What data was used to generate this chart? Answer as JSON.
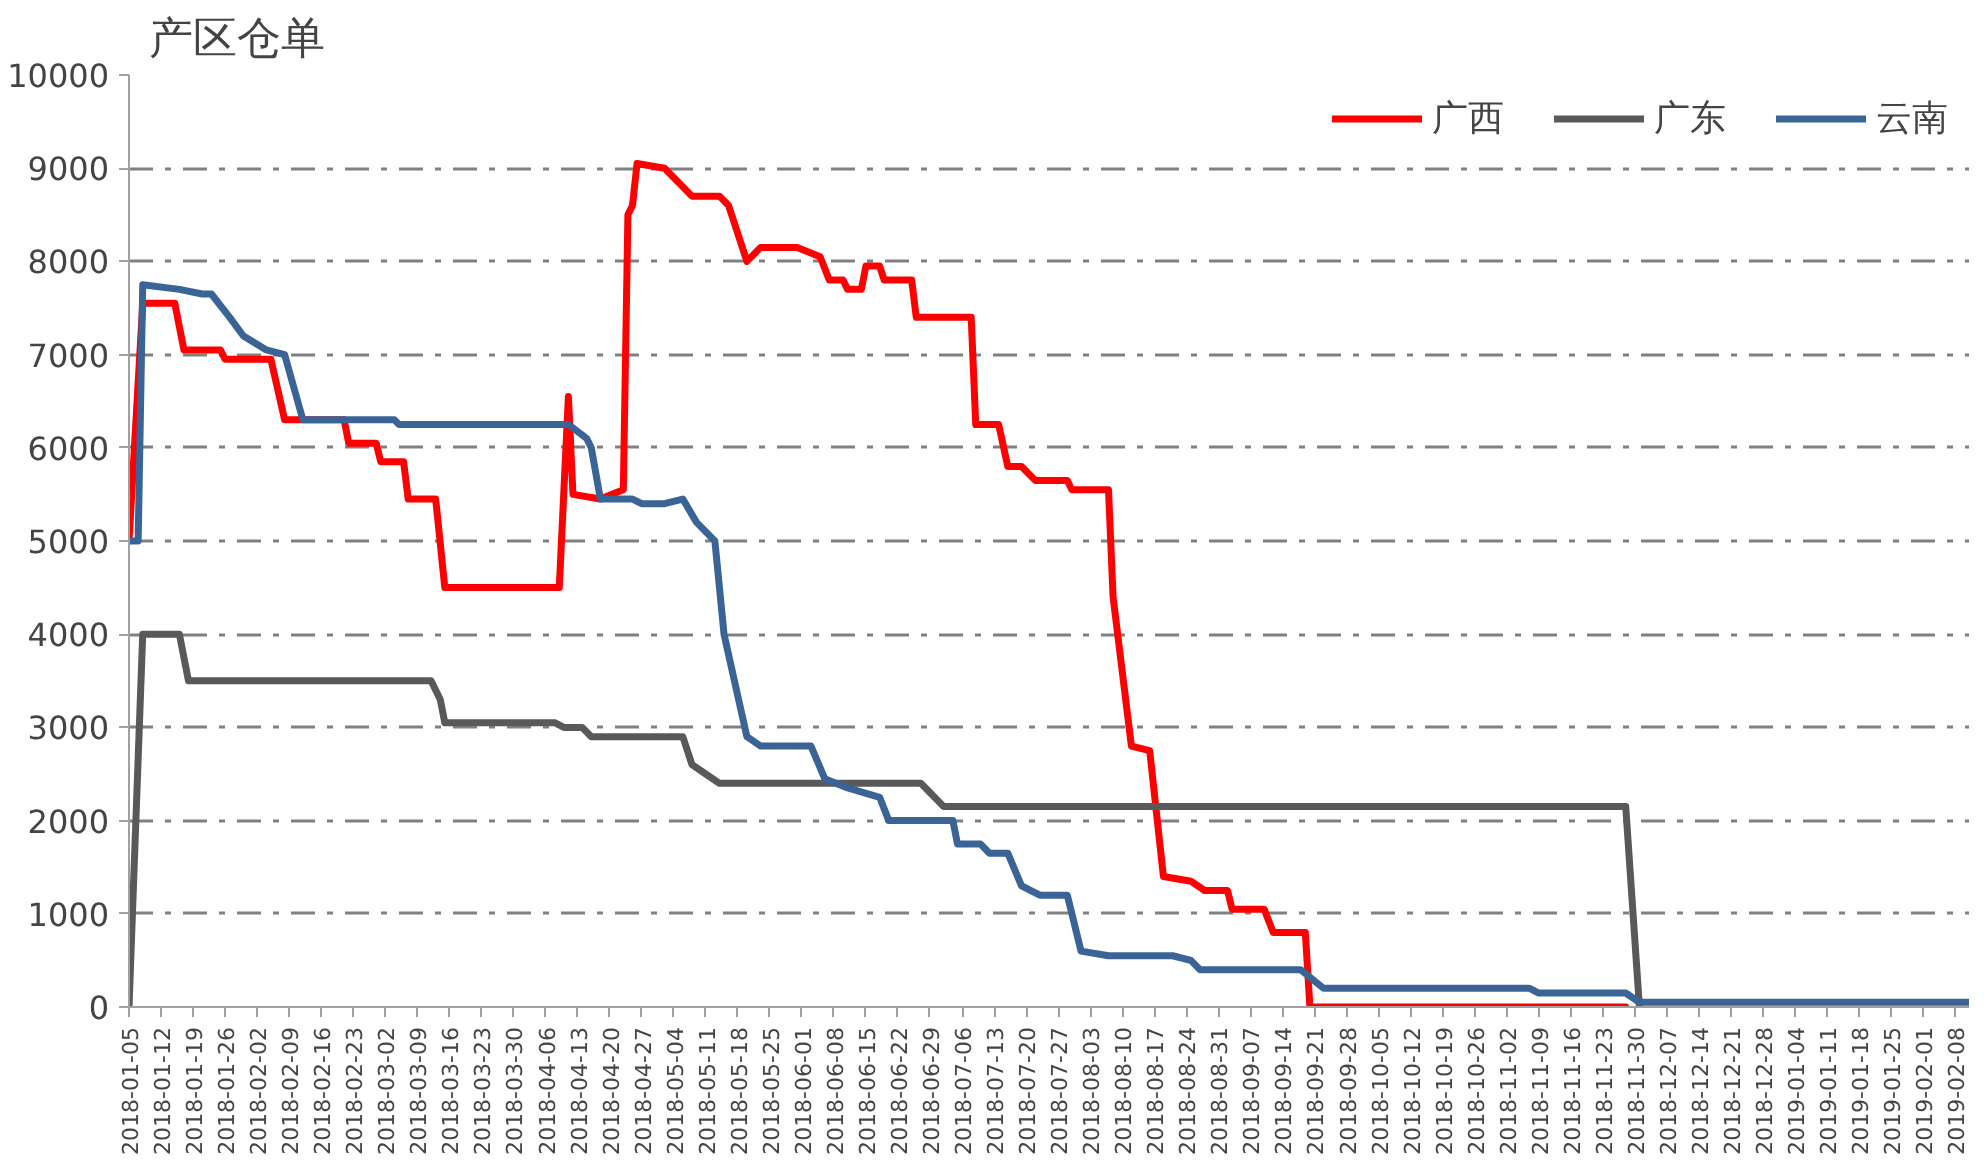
{
  "chart_data": {
    "type": "line",
    "title": "产区仓单",
    "xlim": [
      "2018-01-05",
      "2019-02-11"
    ],
    "ylim": [
      0,
      10000
    ],
    "yticks": [
      0,
      1000,
      2000,
      3000,
      4000,
      5000,
      6000,
      7000,
      8000,
      9000,
      10000
    ],
    "xticks": [
      "2018-01-05",
      "2018-01-12",
      "2018-01-19",
      "2018-01-26",
      "2018-02-02",
      "2018-02-09",
      "2018-02-16",
      "2018-02-23",
      "2018-03-02",
      "2018-03-09",
      "2018-03-16",
      "2018-03-23",
      "2018-03-30",
      "2018-04-06",
      "2018-04-13",
      "2018-04-20",
      "2018-04-27",
      "2018-05-04",
      "2018-05-11",
      "2018-05-18",
      "2018-05-25",
      "2018-06-01",
      "2018-06-08",
      "2018-06-15",
      "2018-06-22",
      "2018-06-29",
      "2018-07-06",
      "2018-07-13",
      "2018-07-20",
      "2018-07-27",
      "2018-08-03",
      "2018-08-10",
      "2018-08-17",
      "2018-08-24",
      "2018-08-31",
      "2018-09-07",
      "2018-09-14",
      "2018-09-21",
      "2018-09-28",
      "2018-10-05",
      "2018-10-12",
      "2018-10-19",
      "2018-10-26",
      "2018-11-02",
      "2018-11-09",
      "2018-11-16",
      "2018-11-23",
      "2018-11-30",
      "2018-12-07",
      "2018-12-14",
      "2018-12-21",
      "2018-12-28",
      "2019-01-04",
      "2019-01-11",
      "2019-01-18",
      "2019-01-25",
      "2019-02-01",
      "2019-02-08"
    ],
    "grid": "y",
    "legend": "top right",
    "marker": "none",
    "line_style": "solid",
    "series": [
      {
        "name": "广西",
        "color": "#ff0000",
        "x": [
          "2018-01-05",
          "2018-01-08",
          "2018-01-15",
          "2018-01-17",
          "2018-01-25",
          "2018-01-26",
          "2018-02-05",
          "2018-02-08",
          "2018-02-21",
          "2018-02-22",
          "2018-02-28",
          "2018-03-01",
          "2018-03-06",
          "2018-03-07",
          "2018-03-13",
          "2018-03-15",
          "2018-04-09",
          "2018-04-11",
          "2018-04-12",
          "2018-04-18",
          "2018-04-23",
          "2018-04-24",
          "2018-04-25",
          "2018-04-26",
          "2018-05-02",
          "2018-05-08",
          "2018-05-14",
          "2018-05-16",
          "2018-05-20",
          "2018-05-23",
          "2018-05-31",
          "2018-06-05",
          "2018-06-07",
          "2018-06-10",
          "2018-06-11",
          "2018-06-14",
          "2018-06-15",
          "2018-06-18",
          "2018-06-19",
          "2018-06-25",
          "2018-06-26",
          "2018-07-08",
          "2018-07-09",
          "2018-07-14",
          "2018-07-16",
          "2018-07-19",
          "2018-07-22",
          "2018-07-29",
          "2018-07-30",
          "2018-08-07",
          "2018-08-08",
          "2018-08-12",
          "2018-08-16",
          "2018-08-19",
          "2018-08-25",
          "2018-08-28",
          "2018-09-02",
          "2018-09-03",
          "2018-09-10",
          "2018-09-12",
          "2018-09-19",
          "2018-09-20",
          "2018-11-28"
        ],
        "values": [
          5000,
          7550,
          7550,
          7050,
          7050,
          6950,
          6950,
          6300,
          6300,
          6050,
          6050,
          5850,
          5850,
          5450,
          5450,
          4500,
          4500,
          6550,
          5500,
          5450,
          5550,
          8500,
          8600,
          9050,
          9000,
          8700,
          8700,
          8600,
          8000,
          8150,
          8150,
          8050,
          7800,
          7800,
          7700,
          7700,
          7950,
          7950,
          7800,
          7800,
          7400,
          7400,
          6250,
          6250,
          5800,
          5800,
          5650,
          5650,
          5550,
          5550,
          4400,
          2800,
          2750,
          1400,
          1350,
          1250,
          1250,
          1050,
          1050,
          800,
          800,
          0,
          0
        ]
      },
      {
        "name": "广东",
        "color": "#595959",
        "x": [
          "2018-01-05",
          "2018-01-08",
          "2018-01-16",
          "2018-01-18",
          "2018-03-12",
          "2018-03-14",
          "2018-03-15",
          "2018-04-08",
          "2018-04-10",
          "2018-04-14",
          "2018-04-16",
          "2018-05-06",
          "2018-05-08",
          "2018-05-11",
          "2018-05-14",
          "2018-06-27",
          "2018-07-02",
          "2018-11-28",
          "2018-12-01"
        ],
        "values": [
          0,
          4000,
          4000,
          3500,
          3500,
          3300,
          3050,
          3050,
          3000,
          3000,
          2900,
          2900,
          2600,
          2500,
          2400,
          2400,
          2150,
          2150,
          0
        ]
      },
      {
        "name": "云南",
        "color": "#3a6496",
        "x": [
          "2018-01-05",
          "2018-01-07",
          "2018-01-08",
          "2018-01-16",
          "2018-01-21",
          "2018-01-23",
          "2018-01-27",
          "2018-01-30",
          "2018-02-04",
          "2018-02-08",
          "2018-02-12",
          "2018-03-04",
          "2018-03-05",
          "2018-04-11",
          "2018-04-15",
          "2018-04-16",
          "2018-04-18",
          "2018-04-25",
          "2018-04-27",
          "2018-05-02",
          "2018-05-06",
          "2018-05-09",
          "2018-05-13",
          "2018-05-15",
          "2018-05-20",
          "2018-05-23",
          "2018-06-03",
          "2018-06-06",
          "2018-06-11",
          "2018-06-18",
          "2018-06-20",
          "2018-07-04",
          "2018-07-05",
          "2018-07-10",
          "2018-07-12",
          "2018-07-16",
          "2018-07-19",
          "2018-07-23",
          "2018-07-29",
          "2018-08-01",
          "2018-08-07",
          "2018-08-21",
          "2018-08-25",
          "2018-08-27",
          "2018-09-18",
          "2018-09-23",
          "2018-11-07",
          "2018-11-09",
          "2018-11-28",
          "2018-12-01",
          "2019-02-11"
        ],
        "values": [
          5000,
          5000,
          7750,
          7700,
          7650,
          7650,
          7400,
          7200,
          7050,
          7000,
          6300,
          6300,
          6250,
          6250,
          6100,
          6000,
          5450,
          5450,
          5400,
          5400,
          5450,
          5200,
          5000,
          4000,
          2900,
          2800,
          2800,
          2450,
          2350,
          2250,
          2000,
          2000,
          1750,
          1750,
          1650,
          1650,
          1300,
          1200,
          1200,
          600,
          550,
          550,
          500,
          400,
          400,
          200,
          200,
          150,
          150,
          50,
          50
        ]
      }
    ]
  }
}
